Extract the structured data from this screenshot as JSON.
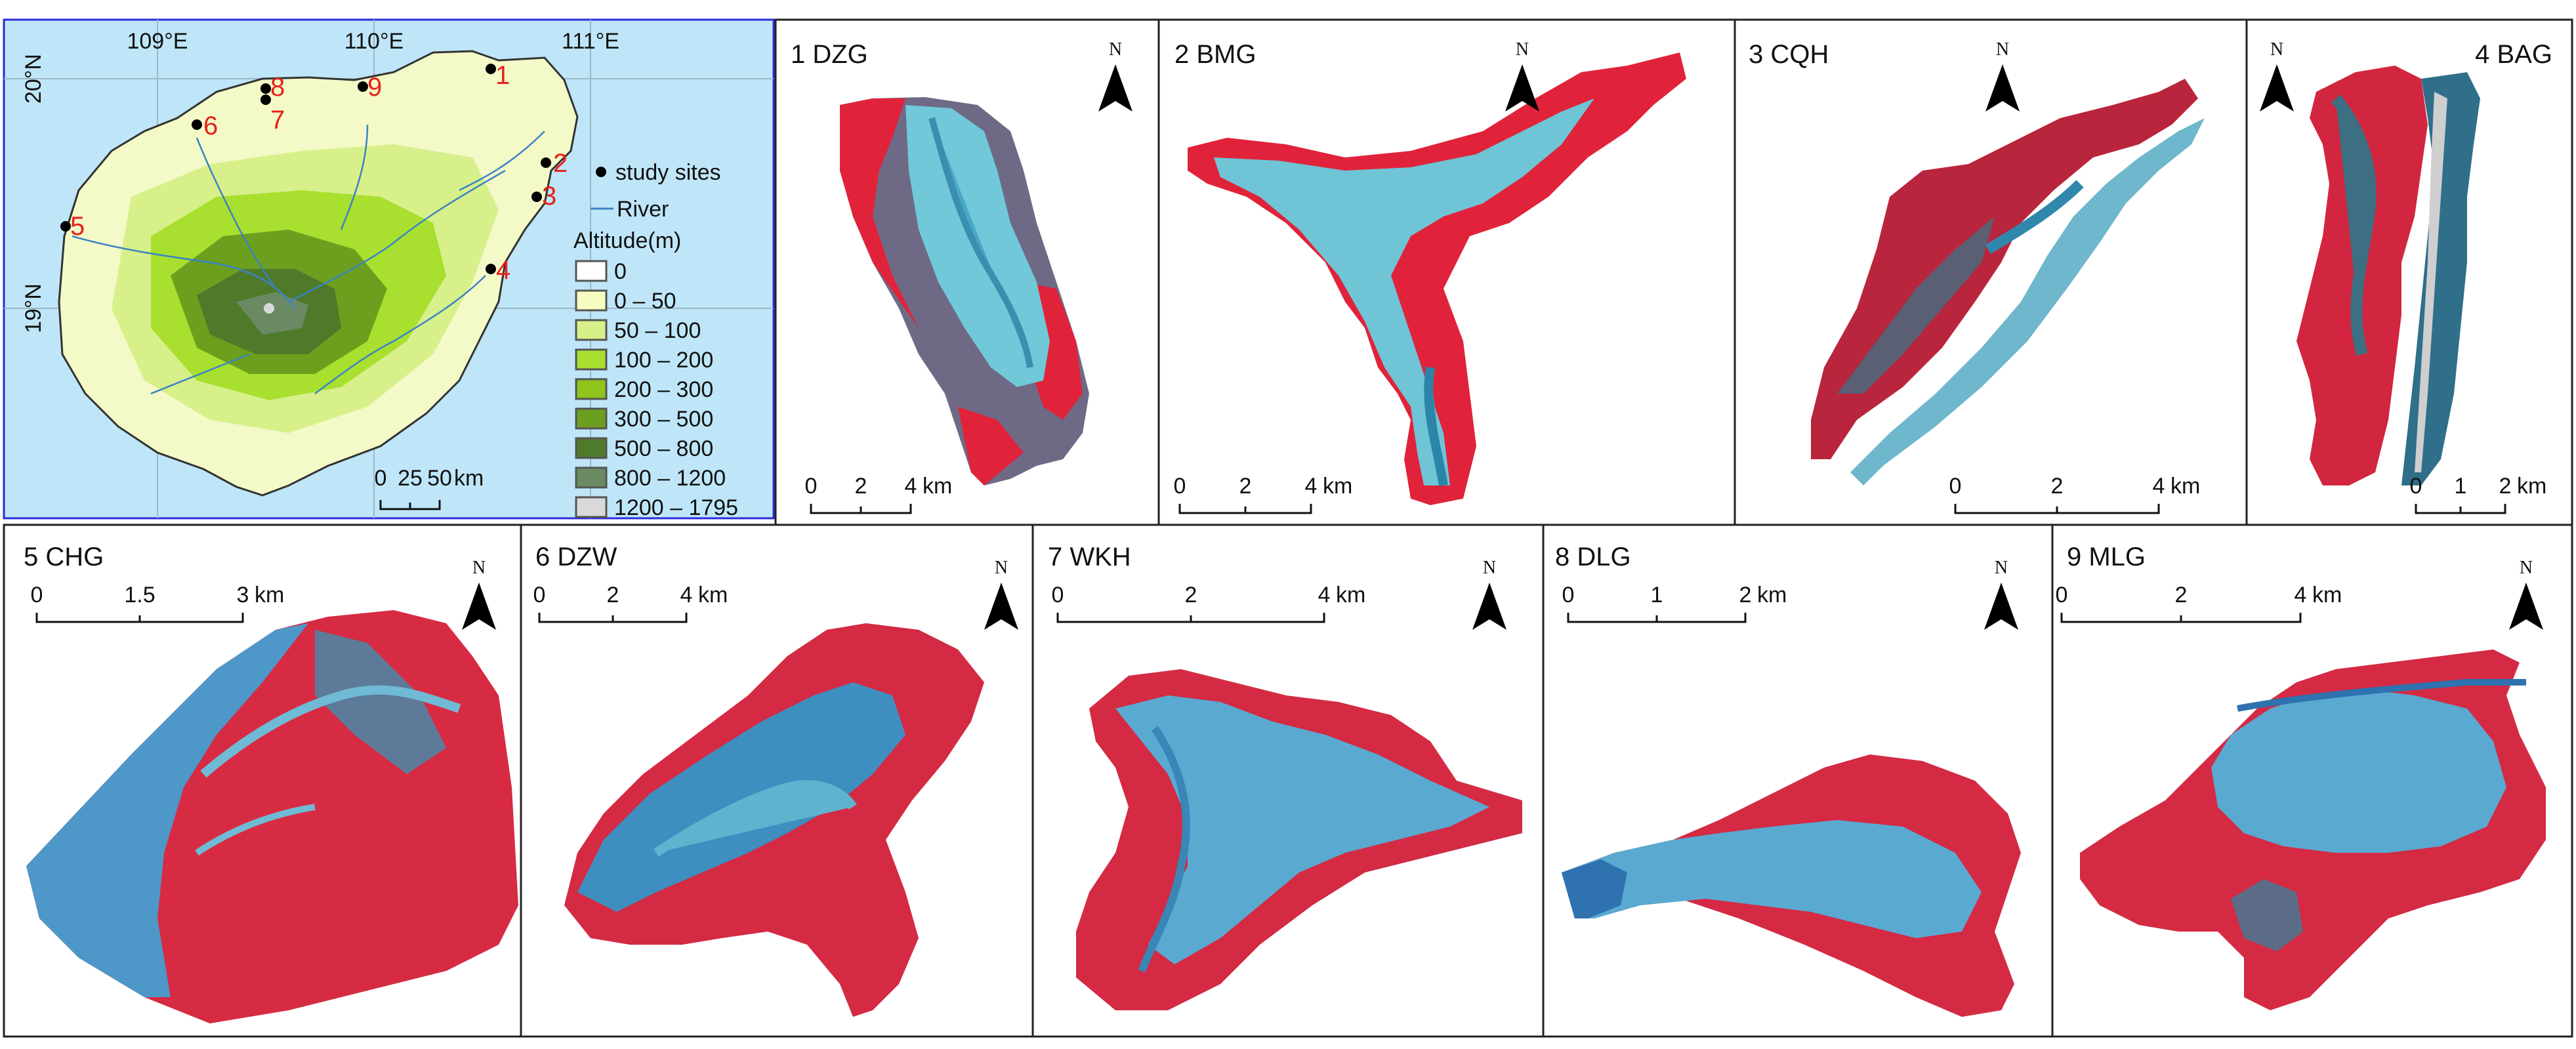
{
  "overview": {
    "lon_labels": [
      "109°E",
      "110°E",
      "111°E"
    ],
    "lat_labels": [
      "20°N",
      "19°N"
    ],
    "site_numbers": [
      "1",
      "2",
      "3",
      "4",
      "5",
      "6",
      "7",
      "8",
      "9"
    ],
    "legend": {
      "study_sites": "study sites",
      "river": "River",
      "altitude_title": "Altitude(m)",
      "classes": [
        {
          "label": "0",
          "color": "#ffffff"
        },
        {
          "label": "0 – 50",
          "color": "#f6fbc0"
        },
        {
          "label": "50 – 100",
          "color": "#d7f08a"
        },
        {
          "label": "100 – 200",
          "color": "#a9df2f"
        },
        {
          "label": "200 – 300",
          "color": "#8fc41c"
        },
        {
          "label": "300 – 500",
          "color": "#6d9f1e"
        },
        {
          "label": "500 – 800",
          "color": "#4f7a2a"
        },
        {
          "label": "800 – 1200",
          "color": "#6b8a63"
        },
        {
          "label": "1200 – 1795",
          "color": "#d9d9d9"
        }
      ]
    },
    "scale": {
      "ticks": [
        "0",
        "25",
        "50"
      ],
      "unit": "km"
    }
  },
  "panels": [
    {
      "title": "1 DZG",
      "scale_ticks": [
        "0",
        "2",
        "4"
      ],
      "scale_unit": "km"
    },
    {
      "title": "2 BMG",
      "scale_ticks": [
        "0",
        "2",
        "4"
      ],
      "scale_unit": "km"
    },
    {
      "title": "3 CQH",
      "scale_ticks": [
        "0",
        "2",
        "4"
      ],
      "scale_unit": "km"
    },
    {
      "title": "4 BAG",
      "scale_ticks": [
        "0",
        "1",
        "2"
      ],
      "scale_unit": "km"
    },
    {
      "title": "5 CHG",
      "scale_ticks": [
        "0",
        "1.5",
        "3"
      ],
      "scale_unit": "km"
    },
    {
      "title": "6 DZW",
      "scale_ticks": [
        "0",
        "2",
        "4"
      ],
      "scale_unit": "km"
    },
    {
      "title": "7 WKH",
      "scale_ticks": [
        "0",
        "2",
        "4"
      ],
      "scale_unit": "km"
    },
    {
      "title": "8 DLG",
      "scale_ticks": [
        "0",
        "1",
        "2"
      ],
      "scale_unit": "km"
    },
    {
      "title": "9 MLG",
      "scale_ticks": [
        "0",
        "2",
        "4"
      ],
      "scale_unit": "km"
    }
  ],
  "north_label": "N",
  "colors": {
    "sea": "#bfe6f8",
    "water": "#5ab7cf",
    "vegetation": "#e0233a",
    "land": "#6d6f86",
    "marker_red": "#e8211d"
  }
}
